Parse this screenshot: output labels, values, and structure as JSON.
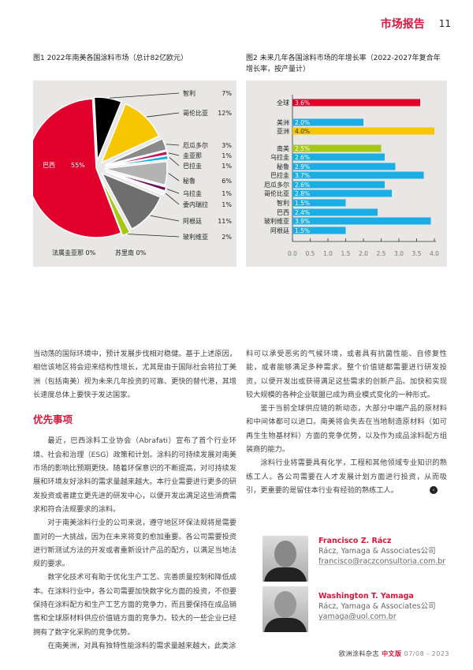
{
  "header": {
    "section": "市场报告",
    "page": "11"
  },
  "fig1": {
    "title": "图1 2022年南美各国涂料市场（总计82亿欧元）"
  },
  "fig2": {
    "title": "图2 未来几年各国涂料市场的年增长率（2022-2027年复合年增长率，按产量计）"
  },
  "chart_data": [
    {
      "type": "pie",
      "title": "图1 2022年南美各国涂料市场（总计82亿欧元）",
      "slices": [
        {
          "label": "智利",
          "value": 7,
          "text": "7%",
          "color": "#000000"
        },
        {
          "label": "哥伦比亚",
          "value": 12,
          "text": "12%",
          "color": "#f7c600"
        },
        {
          "label": "厄瓜多尔",
          "value": 3,
          "text": "3%",
          "color": "#8a8a8a"
        },
        {
          "label": "圭亚那",
          "value": 1,
          "text": "1%",
          "color": "#c0145a"
        },
        {
          "label": "巴拉圭",
          "value": 1,
          "text": "1%",
          "color": "#1aaee5"
        },
        {
          "label": "秘鲁",
          "value": 6,
          "text": "6%",
          "color": "#b3b3b3"
        },
        {
          "label": "乌拉圭",
          "value": 1,
          "text": "1%",
          "color": "#6b0f5a"
        },
        {
          "label": "委内瑞拉",
          "value": 1,
          "text": "1%",
          "color": "#f2f2f2"
        },
        {
          "label": "阿根廷",
          "value": 11,
          "text": "11%",
          "color": "#6e6e6e"
        },
        {
          "label": "玻利维亚",
          "value": 2,
          "text": "2%",
          "color": "#a6c814"
        },
        {
          "label": "法属圭亚那",
          "value": 0,
          "text": "0%",
          "color": "#cccccc"
        },
        {
          "label": "苏里南",
          "value": 0,
          "text": "0%",
          "color": "#cccccc"
        },
        {
          "label": "巴西",
          "value": 55,
          "text": "55%",
          "color": "#e0002b"
        }
      ]
    },
    {
      "type": "bar",
      "orientation": "horizontal",
      "title": "图2 未来几年各国涂料市场的年增长率（2022-2027年复合年增长率，按产量计）",
      "categories": [
        "全球",
        "美洲",
        "亚洲",
        "南美",
        "乌拉圭",
        "秘鲁",
        "巴拉圭",
        "厄瓜多尔",
        "哥伦比亚",
        "智利",
        "巴西",
        "玻利维亚",
        "阿根廷"
      ],
      "values": [
        3.6,
        2.0,
        4.0,
        2.5,
        2.6,
        2.9,
        3.7,
        2.6,
        2.8,
        1.5,
        2.4,
        3.9,
        1.5
      ],
      "labels": [
        "3.6%",
        "2.0%",
        "4.0%",
        "2.5%",
        "2.6%",
        "2.9%",
        "3.7%",
        "2.6%",
        "2.8%",
        "1.5%",
        "2.4%",
        "3.9%",
        "1.5%"
      ],
      "colors": [
        "#e0002b",
        "#1aaee5",
        "#f7c600",
        "#a6c814",
        "#1aaee5",
        "#1aaee5",
        "#1aaee5",
        "#1aaee5",
        "#1aaee5",
        "#1aaee5",
        "#1aaee5",
        "#1aaee5",
        "#1aaee5"
      ],
      "xlim": [
        0,
        4.0
      ],
      "xticks": [
        "0.0",
        "0.5",
        "1.0",
        "1.5",
        "2.0",
        "2.5",
        "3.0",
        "3.5",
        "4.0"
      ]
    }
  ],
  "left_col": {
    "p0": "当动荡的国际环境中，预计发展步伐相对稳健。基于上述原因，相信该地区将会迎来结构性增长，尤其是由于国际社会将拉丁美洲（包括南美）视为未来几年投资的可靠、更快的替代港，其增长速度总体上要快于发达国家。",
    "heading": "优先事项",
    "p1": "最近，巴西涂料工业协会（Abrafati）宣布了首个行业环境、社会和治理（ESG）政策和计划。涂料的可持续发展对南美市场的影响比预期更快。随着环保意识的不断提高，对可持续发展和环境友好涂料的需求量越来越大。本行业需要进行更多的研发投资或者建立更先进的研发中心，以便开发出满足这些消费需求和符合法规要求的涂料。",
    "p2": "对于南美涂料行业的公司来说，遵守地区环保法规将是需要面对的一大挑战，因为在未来将变的愈加重要。各公司需要投资进行新测试方法的开发或者重新设计产品的配方，以满足当地法规的要求。",
    "p3": "数字化技术可有助于优化生产工艺、完善质量控制和降低成本。在涂料行业中，各公司需要加快数字化方面的投资，不但要保持在涂料配方和生产工艺方面的竞争力，而且要保持在成品销售和全球原材料供应价值链方面的竞争力。较大的一些企业已经拥有了数字化采购的竞争优势。",
    "p4": "在南美洲，对具有独特性能涂料的需求量越来越大，此类涂"
  },
  "right_col": {
    "p0": "料可以承受恶劣的气候环境，或者具有抗菌性能、自修复性能，或者能够满足多种需求。整个价值链都需要进行研发投资，以便开发出或获得满足这些需求的创新产品。加快和实现较大规模的各种企业联盟已成为商业模式变化的一种形式。",
    "p1": "鉴于当前全球供应链的新动态，大部分中端产品的原材料和中间体都可以进口。南美将会失去在当地制造原材料（如可再生生物基材料）方面的竞争优势，以及作为成品涂料配方组装商的能力。",
    "p2": "涂料行业将需要具有化学，工程和其他领域专业知识的熟练工人。各公司需要在人才发展计划方面进行投资，从而吸引，更重要的是留住本行业有经验的熟练工人。"
  },
  "authors": [
    {
      "name": "Francisco Z. Rácz",
      "company": "Rácz, Yamaga & Associates公司",
      "email": "francisco@raczconsultoria.com.br"
    },
    {
      "name": "Washington T. Yamaga",
      "company": "Rácz, Yamaga & Associates公司",
      "email": "yamaga@uol.com.br"
    }
  ],
  "footer": {
    "magazine": "欧洲涂料杂志",
    "edition": "中文版",
    "date": "07/08 - 2023"
  }
}
